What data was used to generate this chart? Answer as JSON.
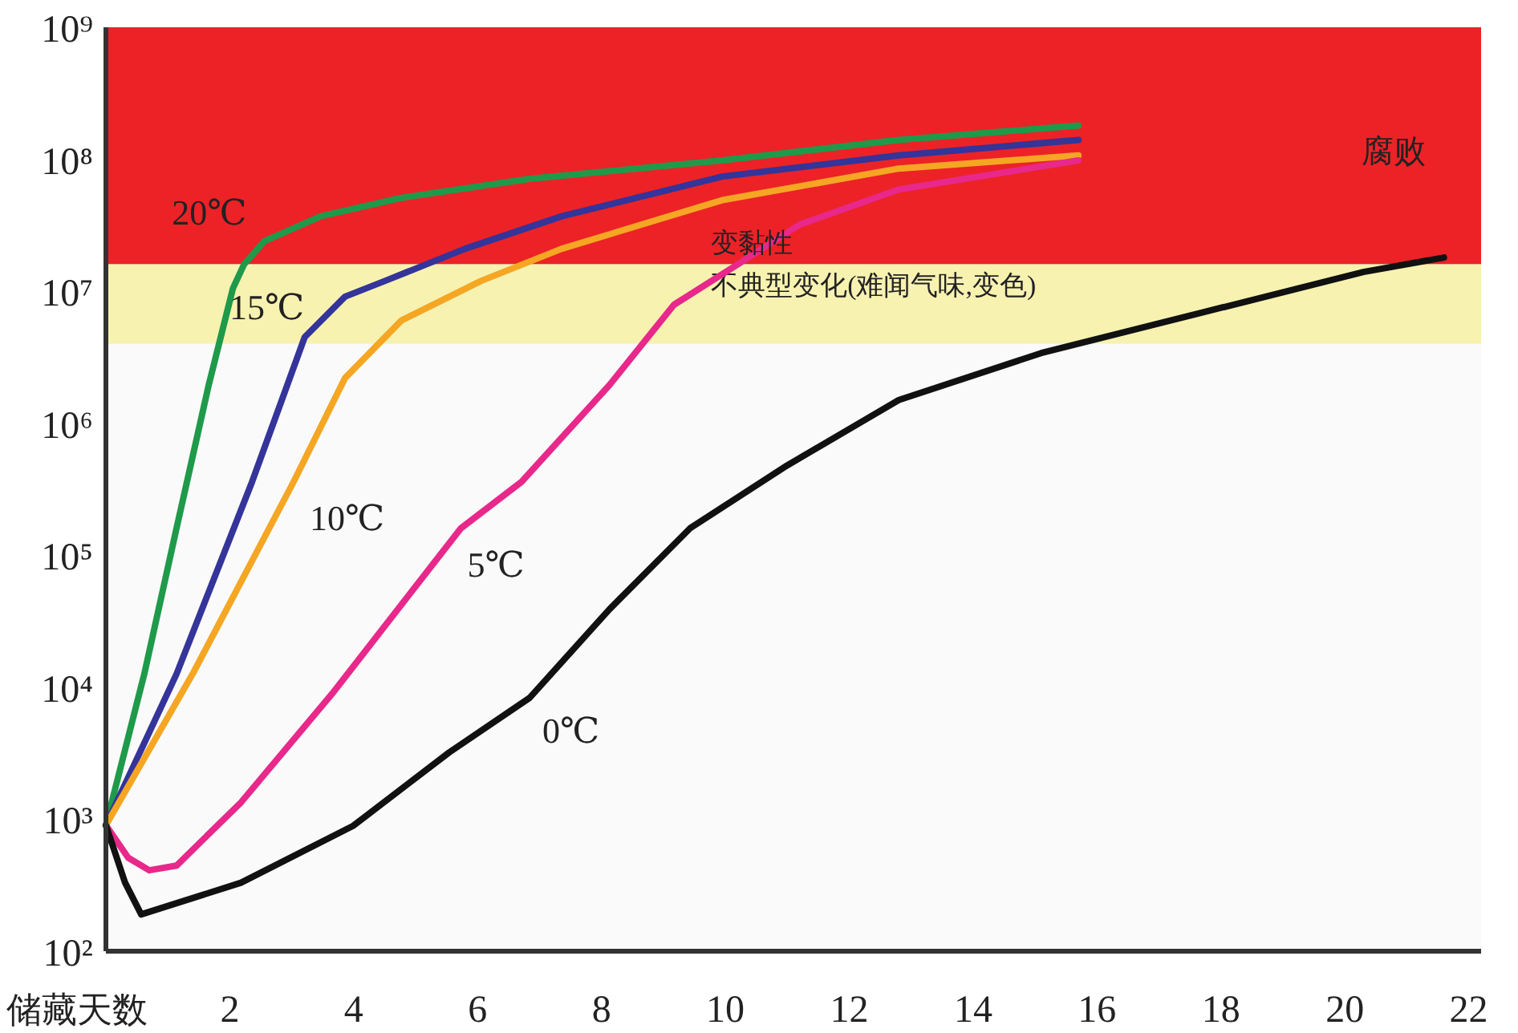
{
  "chart_data": {
    "type": "line",
    "xlabel": "储藏天数",
    "xlim": [
      0,
      22.2
    ],
    "xticks": [
      2,
      4,
      6,
      8,
      10,
      12,
      14,
      16,
      18,
      20,
      22
    ],
    "ylim": [
      100,
      1000000000
    ],
    "log": true,
    "yticks": [
      {
        "value": 100,
        "label": "10²"
      },
      {
        "value": 1000,
        "label": "10³"
      },
      {
        "value": 10000,
        "label": "10⁴"
      },
      {
        "value": 100000,
        "label": "10⁵"
      },
      {
        "value": 1000000,
        "label": "10⁶"
      },
      {
        "value": 10000000,
        "label": "10⁷"
      },
      {
        "value": 100000000,
        "label": "10⁸"
      },
      {
        "value": 1000000000,
        "label": "10⁹"
      }
    ],
    "grid": false,
    "marker": "none",
    "line_style": "solid",
    "bands": [
      {
        "axis": "y",
        "from": 16000000,
        "to": 1000000000,
        "label": "腐败",
        "color": "#ec2227"
      },
      {
        "axis": "y",
        "from": 4000000,
        "to": 16000000,
        "label": "不典型变化(难闻气味,变色)",
        "color": "#f7f2b0"
      }
    ],
    "annotations": [
      "变黏性"
    ],
    "series": [
      {
        "name": "20℃",
        "color": "#1f9a4a",
        "x": [
          0,
          0.62,
          1.14,
          1.66,
          2.05,
          2.23,
          2.56,
          3.47,
          4.77,
          6.84,
          9.95,
          12.8,
          15.7
        ],
        "values": [
          900,
          12600,
          160000,
          1950000,
          10500000,
          16000000,
          24000000,
          37000000,
          51000000,
          71000000,
          98000000,
          140000000,
          180000000
        ]
      },
      {
        "name": "15℃",
        "color": "#34349a",
        "x": [
          0,
          1.14,
          2.36,
          3.21,
          3.86,
          4.51,
          5.8,
          7.36,
          9.95,
          12.8,
          15.7
        ],
        "values": [
          900,
          12600,
          360000,
          4500000,
          9100000,
          12000000,
          21000000,
          37000000,
          74000000,
          107000000,
          140000000
        ]
      },
      {
        "name": "10℃",
        "color": "#f5a623",
        "x": [
          0,
          1.4,
          3.03,
          3.86,
          4.77,
          6.06,
          7.36,
          9.95,
          12.8,
          15.7
        ],
        "values": [
          900,
          12600,
          360000,
          2200000,
          6000000,
          12000000,
          21000000,
          49000000,
          85000000,
          107000000
        ]
      },
      {
        "name": "5℃",
        "color": "#e8288a",
        "x": [
          0,
          0.36,
          0.7,
          1.14,
          2.18,
          3.65,
          5.73,
          6.71,
          8.13,
          9.17,
          10.2,
          11.2,
          12.8,
          15.7
        ],
        "values": [
          900,
          510,
          410,
          445,
          1340,
          8900,
          160000,
          360000,
          1950000,
          7900000,
          16000000,
          32000000,
          59000000,
          98000000
        ]
      },
      {
        "name": "0℃",
        "color": "#111111",
        "x": [
          0,
          0.31,
          0.57,
          2.18,
          3.99,
          5.54,
          6.84,
          8.13,
          9.43,
          11.0,
          12.8,
          15.1,
          17.7,
          20.3,
          21.6
        ],
        "values": [
          900,
          330,
          190,
          330,
          890,
          3200,
          8300,
          39000,
          160000,
          480000,
          1500000,
          3400000,
          6900000,
          14000000,
          18000000
        ]
      }
    ]
  }
}
